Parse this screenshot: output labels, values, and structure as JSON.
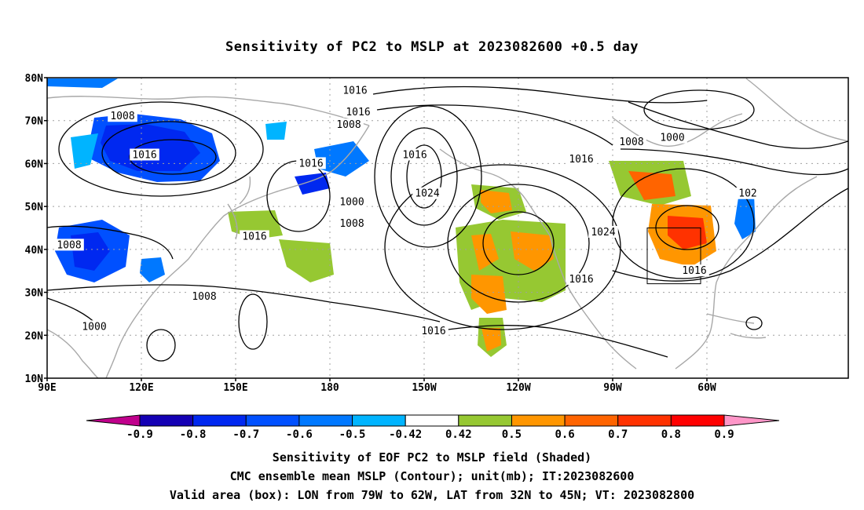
{
  "title": "Sensitivity of PC2 to MSLP at 2023082600 +0.5 day",
  "lat_labels": [
    "80N",
    "70N",
    "60N",
    "50N",
    "40N",
    "30N",
    "20N",
    "10N"
  ],
  "lon_labels": [
    "90E",
    "120E",
    "150E",
    "180",
    "150W",
    "120W",
    "90W",
    "60W"
  ],
  "contour_labels": [
    {
      "text": "1016",
      "lon": -172,
      "lat": 77
    },
    {
      "text": "1016",
      "lon": -171,
      "lat": 72
    },
    {
      "text": "1008",
      "lon": -174,
      "lat": 69
    },
    {
      "text": "1008",
      "lon": 114,
      "lat": 71
    },
    {
      "text": "1016",
      "lon": 121,
      "lat": 62
    },
    {
      "text": "1016",
      "lon": 174,
      "lat": 60
    },
    {
      "text": "1016",
      "lon": -153,
      "lat": 62
    },
    {
      "text": "1024",
      "lon": -149,
      "lat": 53
    },
    {
      "text": "1000",
      "lon": -173,
      "lat": 51
    },
    {
      "text": "1008",
      "lon": -173,
      "lat": 46
    },
    {
      "text": "1016",
      "lon": 156,
      "lat": 43
    },
    {
      "text": "1008",
      "lon": 97,
      "lat": 41
    },
    {
      "text": "1008",
      "lon": 140,
      "lat": 29
    },
    {
      "text": "1000",
      "lon": 105,
      "lat": 22
    },
    {
      "text": "1016",
      "lon": -147,
      "lat": 21
    },
    {
      "text": "1016",
      "lon": -100,
      "lat": 33
    },
    {
      "text": "1024",
      "lon": -93,
      "lat": 44
    },
    {
      "text": "1016",
      "lon": -100,
      "lat": 61
    },
    {
      "text": "1008",
      "lon": -84,
      "lat": 65
    },
    {
      "text": "1000",
      "lon": -71,
      "lat": 66
    },
    {
      "text": "1016",
      "lon": -64,
      "lat": 35
    },
    {
      "text": "102",
      "lon": -47,
      "lat": 53
    }
  ],
  "legend": {
    "labels": [
      "-0.9",
      "-0.8",
      "-0.7",
      "-0.6",
      "-0.5",
      "-0.42",
      "0.42",
      "0.5",
      "0.6",
      "0.7",
      "0.8",
      "0.9"
    ],
    "colors": [
      "#c0008c",
      "#1400b4",
      "#0028f0",
      "#0050ff",
      "#0078ff",
      "#00b4ff",
      "#ffffff",
      "#96c832",
      "#ff9600",
      "#ff6400",
      "#ff3200",
      "#ff0000",
      "#ff96c8"
    ]
  },
  "valid_box": {
    "lon_min": -79,
    "lon_max": -62,
    "lat_min": 32,
    "lat_max": 45
  },
  "footer": [
    "Sensitivity of EOF PC2 to MSLP field (Shaded)",
    "CMC ensemble mean MSLP (Contour); unit(mb); IT:2023082600",
    "Valid area (box): LON from 79W to 62W, LAT from 32N to 45N; VT: 2023082800"
  ],
  "colors": {
    "coast": "#a8a8a8",
    "contour": "#000000",
    "grid": "#a0a0a0"
  }
}
